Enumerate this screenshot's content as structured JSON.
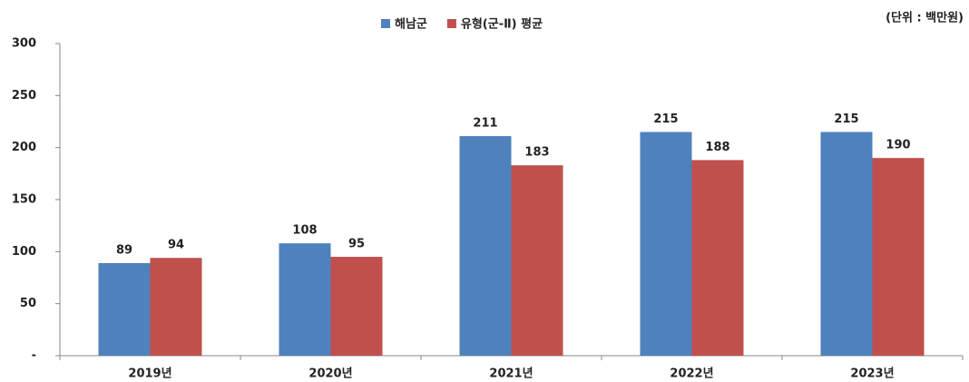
{
  "chart_data": {
    "type": "bar",
    "annotation": "(단위 : 백만원)",
    "categories": [
      "2019년",
      "2020년",
      "2021년",
      "2022년",
      "2023년"
    ],
    "series": [
      {
        "name": "해남군",
        "color": "#4f81bd",
        "values": [
          89,
          108,
          211,
          215,
          215
        ]
      },
      {
        "name": "유형(군-Ⅱ) 평균",
        "color": "#c0504d",
        "values": [
          94,
          95,
          183,
          188,
          190
        ]
      }
    ],
    "ylim": [
      0,
      300
    ],
    "yticks": [
      {
        "value": 0,
        "label": "-"
      },
      50,
      100,
      150,
      200,
      250,
      300
    ],
    "grid": false,
    "legend": "top"
  }
}
